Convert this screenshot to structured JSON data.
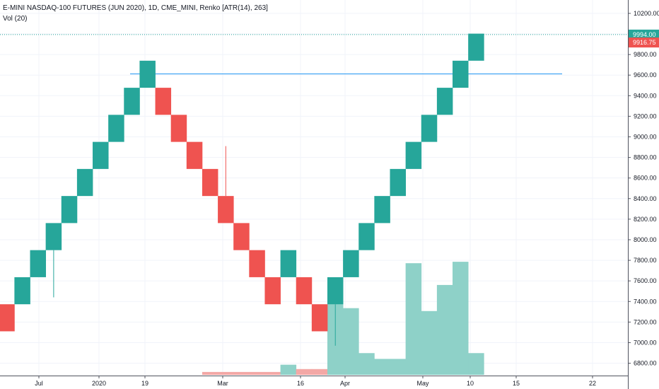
{
  "legend": {
    "title": "E-MINI NASDAQ-100 FUTURES (JUN 2020), 1D, CME_MINI, Renko [ATR(14), 263]",
    "volume": "Vol (20)"
  },
  "colors": {
    "up": "#26a69a",
    "down": "#ef5350",
    "vol_up": "#8ed1c8",
    "vol_down": "#f3a8a6",
    "last_price_line": "#26a69a",
    "hline": "#2196f3",
    "grid": "#f0f3fa"
  },
  "chart_data": {
    "type": "renko",
    "y_axis": {
      "ticks": [
        6800,
        7000,
        7200,
        7400,
        7600,
        7800,
        8000,
        8200,
        8400,
        8600,
        8800,
        9000,
        9200,
        9400,
        9600,
        9800,
        10000,
        10200
      ],
      "tick_labels": [
        "6800.00",
        "7000.00",
        "7200.00",
        "7400.00",
        "7600.00",
        "7800.00",
        "8000.00",
        "8200.00",
        "8400.00",
        "8600.00",
        "8800.00",
        "9000.00",
        "9200.00",
        "9400.00",
        "9600.00",
        "9800.00",
        "10000.00",
        "10200.00"
      ],
      "range": [
        6680,
        10330
      ]
    },
    "x_axis": {
      "labels": [
        "Jul",
        "2020",
        "19",
        "Mar",
        "16",
        "Apr",
        "May",
        "10",
        "15",
        "22"
      ]
    },
    "bricks": [
      {
        "dir": "down",
        "low": 7110,
        "high": 7373
      },
      {
        "dir": "up",
        "low": 7373,
        "high": 7636
      },
      {
        "dir": "up",
        "low": 7636,
        "high": 7899
      },
      {
        "dir": "up",
        "low": 7899,
        "high": 8162
      },
      {
        "dir": "up",
        "low": 8162,
        "high": 8425
      },
      {
        "dir": "up",
        "low": 8425,
        "high": 8688
      },
      {
        "dir": "up",
        "low": 8688,
        "high": 8951
      },
      {
        "dir": "up",
        "low": 8951,
        "high": 9214
      },
      {
        "dir": "up",
        "low": 9214,
        "high": 9477
      },
      {
        "dir": "up",
        "low": 9477,
        "high": 9740
      },
      {
        "dir": "down",
        "low": 9214,
        "high": 9477
      },
      {
        "dir": "down",
        "low": 8951,
        "high": 9214
      },
      {
        "dir": "down",
        "low": 8688,
        "high": 8951
      },
      {
        "dir": "down",
        "low": 8425,
        "high": 8688
      },
      {
        "dir": "down",
        "low": 8162,
        "high": 8425
      },
      {
        "dir": "down",
        "low": 7899,
        "high": 8162
      },
      {
        "dir": "down",
        "low": 7636,
        "high": 7899
      },
      {
        "dir": "down",
        "low": 7373,
        "high": 7636
      },
      {
        "dir": "up",
        "low": 7636,
        "high": 7899
      },
      {
        "dir": "down",
        "low": 7373,
        "high": 7636
      },
      {
        "dir": "down",
        "low": 7110,
        "high": 7373
      },
      {
        "dir": "up",
        "low": 7373,
        "high": 7636
      },
      {
        "dir": "up",
        "low": 7636,
        "high": 7899
      },
      {
        "dir": "up",
        "low": 7899,
        "high": 8162
      },
      {
        "dir": "up",
        "low": 8162,
        "high": 8425
      },
      {
        "dir": "up",
        "low": 8425,
        "high": 8688
      },
      {
        "dir": "up",
        "low": 8688,
        "high": 8951
      },
      {
        "dir": "up",
        "low": 8951,
        "high": 9214
      },
      {
        "dir": "up",
        "low": 9214,
        "high": 9477
      },
      {
        "dir": "up",
        "low": 9477,
        "high": 9740
      },
      {
        "dir": "up",
        "low": 9740,
        "high": 10003
      }
    ],
    "wicks": [
      {
        "brick": 3,
        "low": 7440,
        "high": 7899
      },
      {
        "brick": 14,
        "low": 8425,
        "high": 8910
      },
      {
        "brick": 21,
        "low": 6970,
        "high": 7373
      }
    ],
    "volume": [
      {
        "brick": 13,
        "dir": "down",
        "value": 0.02
      },
      {
        "brick": 14,
        "dir": "down",
        "value": 0.02
      },
      {
        "brick": 15,
        "dir": "down",
        "value": 0.02
      },
      {
        "brick": 16,
        "dir": "down",
        "value": 0.02
      },
      {
        "brick": 17,
        "dir": "down",
        "value": 0.02
      },
      {
        "brick": 18,
        "dir": "up",
        "value": 0.07
      },
      {
        "brick": 19,
        "dir": "down",
        "value": 0.04
      },
      {
        "brick": 20,
        "dir": "down",
        "value": 0.04
      },
      {
        "brick": 21,
        "dir": "up",
        "value": 0.56
      },
      {
        "brick": 22,
        "dir": "up",
        "value": 0.46
      },
      {
        "brick": 23,
        "dir": "up",
        "value": 0.15
      },
      {
        "brick": 24,
        "dir": "up",
        "value": 0.11
      },
      {
        "brick": 25,
        "dir": "up",
        "value": 0.11
      },
      {
        "brick": 26,
        "dir": "up",
        "value": 0.77
      },
      {
        "brick": 27,
        "dir": "up",
        "value": 0.44
      },
      {
        "brick": 28,
        "dir": "up",
        "value": 0.62
      },
      {
        "brick": 29,
        "dir": "up",
        "value": 0.78
      },
      {
        "brick": 30,
        "dir": "up",
        "value": 0.15
      }
    ],
    "horizontal_line": {
      "price": 9612
    },
    "last_price": {
      "price": 9994.0,
      "label": "9994.00"
    },
    "prev_close": {
      "price": 9916.75,
      "label": "9916.75"
    }
  }
}
